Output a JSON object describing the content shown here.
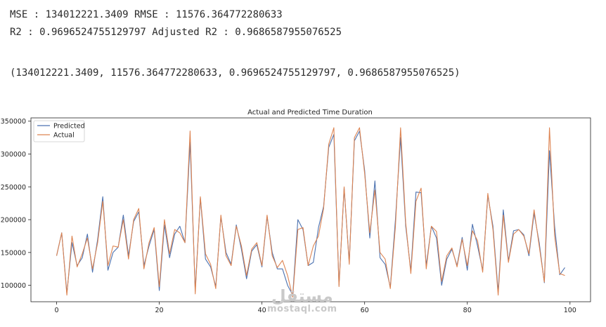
{
  "output": {
    "line1": "MSE : 134012221.3409 RMSE : 11576.364772280633",
    "line2": "R2 : 0.9696524755129797 Adjusted R2 : 0.9686587955076525",
    "line3": "(134012221.3409, 11576.364772280633, 0.9696524755129797, 0.9686587955076525)"
  },
  "watermark": {
    "arabic": "مستقل",
    "latin": "mostaql.com"
  },
  "chart_data": {
    "type": "line",
    "title": "Actual and Predicted Time Duration",
    "xlabel": "",
    "ylabel": "",
    "xlim": [
      -5,
      104
    ],
    "ylim": [
      75000,
      355000
    ],
    "x_ticks": [
      0,
      20,
      40,
      60,
      80,
      100
    ],
    "y_ticks": [
      100000,
      150000,
      200000,
      250000,
      300000,
      350000
    ],
    "legend_position": "top-left",
    "grid": false,
    "x": [
      0,
      1,
      2,
      3,
      4,
      5,
      6,
      7,
      8,
      9,
      10,
      11,
      12,
      13,
      14,
      15,
      16,
      17,
      18,
      19,
      20,
      21,
      22,
      23,
      24,
      25,
      26,
      27,
      28,
      29,
      30,
      31,
      32,
      33,
      34,
      35,
      36,
      37,
      38,
      39,
      40,
      41,
      42,
      43,
      44,
      45,
      46,
      47,
      48,
      49,
      50,
      51,
      52,
      53,
      54,
      55,
      56,
      57,
      58,
      59,
      60,
      61,
      62,
      63,
      64,
      65,
      66,
      67,
      68,
      69,
      70,
      71,
      72,
      73,
      74,
      75,
      76,
      77,
      78,
      79,
      80,
      81,
      82,
      83,
      84,
      85,
      86,
      87,
      88,
      89,
      90,
      91,
      92,
      93,
      94,
      95,
      96,
      97,
      98,
      99
    ],
    "series": [
      {
        "name": "Predicted",
        "color": "#4c72b0",
        "values": [
          145000,
          180000,
          88000,
          165000,
          130000,
          142000,
          178000,
          120000,
          170000,
          235000,
          123000,
          150000,
          158000,
          207000,
          145000,
          197000,
          212000,
          130000,
          160000,
          185000,
          92000,
          192000,
          142000,
          178000,
          190000,
          165000,
          318000,
          92000,
          233000,
          140000,
          128000,
          98000,
          205000,
          150000,
          132000,
          192000,
          155000,
          110000,
          152000,
          162000,
          128000,
          205000,
          150000,
          125000,
          125000,
          100000,
          85000,
          200000,
          185000,
          130000,
          135000,
          188000,
          220000,
          310000,
          330000,
          100000,
          248000,
          135000,
          320000,
          335000,
          275000,
          172000,
          259000,
          142000,
          132000,
          97000,
          200000,
          325000,
          190000,
          122000,
          242000,
          241000,
          130000,
          190000,
          172000,
          100000,
          140000,
          155000,
          130000,
          173000,
          123000,
          193000,
          160000,
          123000,
          237000,
          190000,
          90000,
          215000,
          137000,
          183000,
          185000,
          177000,
          145000,
          210000,
          165000,
          104000,
          305000,
          190000,
          116000,
          127000
        ]
      },
      {
        "name": "Actual",
        "color": "#dd8452",
        "values": [
          145000,
          180000,
          85000,
          175000,
          128000,
          148000,
          172000,
          125000,
          165000,
          228000,
          130000,
          160000,
          158000,
          200000,
          140000,
          200000,
          217000,
          125000,
          165000,
          188000,
          98000,
          200000,
          148000,
          185000,
          180000,
          165000,
          335000,
          87000,
          235000,
          148000,
          132000,
          95000,
          207000,
          145000,
          130000,
          190000,
          160000,
          115000,
          155000,
          165000,
          130000,
          207000,
          145000,
          127000,
          138000,
          115000,
          82000,
          185000,
          188000,
          130000,
          160000,
          175000,
          217000,
          315000,
          340000,
          98000,
          250000,
          132000,
          325000,
          340000,
          270000,
          180000,
          245000,
          150000,
          140000,
          95000,
          190000,
          340000,
          195000,
          118000,
          228000,
          248000,
          125000,
          190000,
          182000,
          106000,
          145000,
          157000,
          128000,
          170000,
          130000,
          183000,
          168000,
          120000,
          240000,
          185000,
          85000,
          207000,
          135000,
          178000,
          185000,
          175000,
          148000,
          215000,
          160000,
          105000,
          340000,
          175000,
          118000,
          115000
        ]
      }
    ]
  }
}
